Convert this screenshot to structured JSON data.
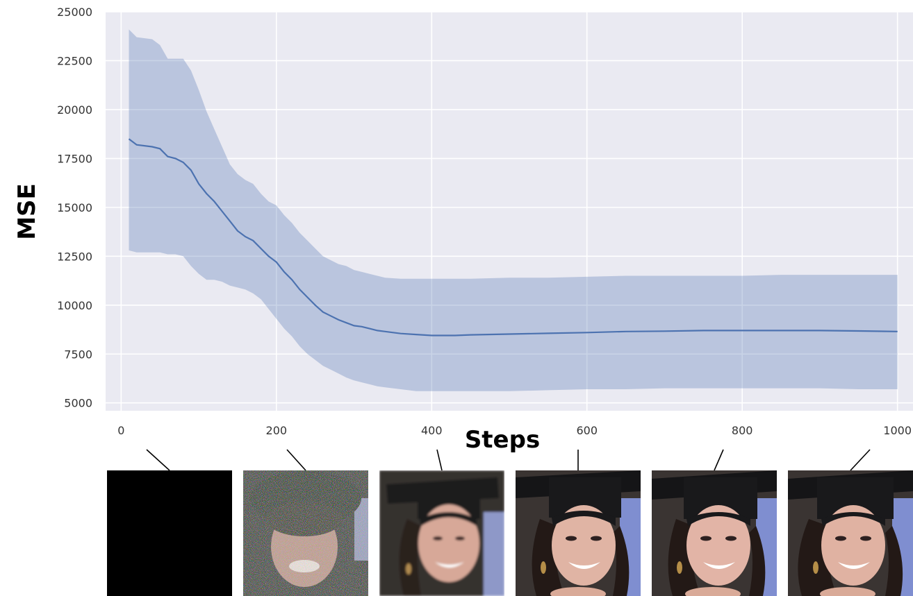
{
  "chart_data": {
    "type": "line",
    "title": "",
    "xlabel": "Steps",
    "ylabel": "MSE",
    "xlim": [
      -20,
      1020
    ],
    "ylim": [
      4600,
      25000
    ],
    "xticks": [
      0,
      200,
      400,
      600,
      800,
      1000
    ],
    "yticks": [
      5000,
      7500,
      10000,
      12500,
      15000,
      17500,
      20000,
      22500,
      25000
    ],
    "grid": true,
    "legend": "none",
    "series": [
      {
        "x": [
          10,
          20,
          40,
          50,
          60,
          70,
          80,
          90,
          100,
          110,
          120,
          130,
          140,
          150,
          160,
          170,
          180,
          190,
          200,
          210,
          220,
          230,
          240,
          250,
          260,
          270,
          280,
          290,
          300,
          310,
          320,
          330,
          340,
          360,
          380,
          400,
          430,
          450,
          500,
          550,
          600,
          650,
          700,
          750,
          800,
          850,
          900,
          950,
          1000
        ],
        "mean": [
          18500,
          18200,
          18100,
          18000,
          17600,
          17500,
          17300,
          16900,
          16200,
          15700,
          15300,
          14800,
          14300,
          13800,
          13500,
          13300,
          12900,
          12500,
          12200,
          11700,
          11300,
          10800,
          10400,
          10000,
          9650,
          9450,
          9250,
          9100,
          8950,
          8900,
          8800,
          8700,
          8650,
          8550,
          8500,
          8450,
          8450,
          8480,
          8520,
          8560,
          8600,
          8650,
          8670,
          8700,
          8700,
          8700,
          8700,
          8680,
          8650
        ],
        "upper": [
          24100,
          23700,
          23600,
          23300,
          22600,
          22600,
          22600,
          22000,
          21000,
          19900,
          19000,
          18100,
          17200,
          16700,
          16400,
          16200,
          15700,
          15300,
          15100,
          14600,
          14200,
          13700,
          13300,
          12900,
          12500,
          12300,
          12100,
          12000,
          11800,
          11700,
          11600,
          11500,
          11400,
          11350,
          11350,
          11350,
          11350,
          11350,
          11400,
          11400,
          11450,
          11500,
          11500,
          11500,
          11500,
          11550,
          11550,
          11550,
          11550
        ],
        "lower": [
          12800,
          12700,
          12700,
          12700,
          12600,
          12600,
          12500,
          12000,
          11600,
          11300,
          11300,
          11200,
          11000,
          10900,
          10800,
          10600,
          10300,
          9800,
          9300,
          8800,
          8400,
          7900,
          7500,
          7200,
          6900,
          6700,
          6500,
          6300,
          6150,
          6050,
          5950,
          5850,
          5800,
          5700,
          5600,
          5600,
          5600,
          5600,
          5600,
          5650,
          5700,
          5700,
          5750,
          5750,
          5750,
          5750,
          5750,
          5700,
          5700
        ],
        "color": "#4c72b0"
      }
    ],
    "plot_background": "#eaeaf2",
    "grid_color": "#ffffff"
  },
  "thumbnails": [
    {
      "step": 0,
      "kind": "blank"
    },
    {
      "step": 200,
      "kind": "noisy"
    },
    {
      "step": 400,
      "kind": "blurry"
    },
    {
      "step": 600,
      "kind": "clean"
    },
    {
      "step": 800,
      "kind": "clean"
    },
    {
      "step": 1000,
      "kind": "clean"
    }
  ]
}
